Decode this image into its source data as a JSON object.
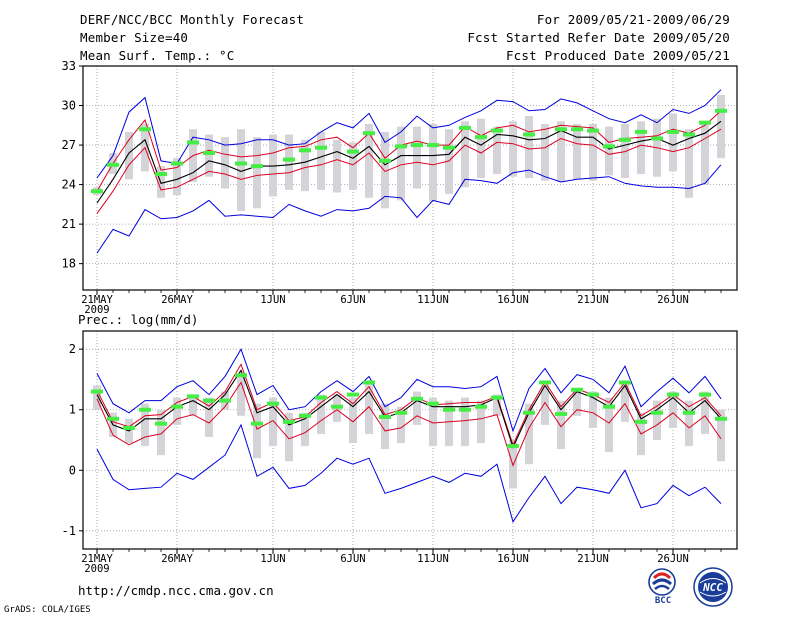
{
  "header": {
    "title": "DERF/NCC/BCC Monthly Forecast",
    "member": "Member Size=40",
    "variable": "Mean Surf. Temp.: °C",
    "period": "For 2009/05/21-2009/06/29",
    "started": "Fcst Started Refer Date 2009/05/20",
    "produced": "Fcst Produced Date 2009/05/21"
  },
  "footer": {
    "url": "http://cmdp.ncc.cma.gov.cn",
    "credit": "GrADS: COLA/IGES",
    "logo_left": "BCC",
    "logo_right": "NCC"
  },
  "colors": {
    "spread_line": "#0000dd",
    "band_line": "#dd0022",
    "mean_line": "#000000",
    "box": "#d3d3d8",
    "median": "#44ee44",
    "grid": "#9a9a9a"
  },
  "chart_data": [
    {
      "type": "line",
      "title": "Mean Surf. Temp.: °C",
      "x_labels": [
        "21MAY",
        "26MAY",
        "1JUN",
        "6JUN",
        "11JUN",
        "16JUN",
        "21JUN",
        "26JUN"
      ],
      "x_label_days": [
        0,
        5,
        11,
        16,
        21,
        26,
        31,
        36
      ],
      "year_label": "2009",
      "days": 40,
      "ylim": [
        16,
        33
      ],
      "yticks": [
        18,
        21,
        24,
        27,
        30,
        33
      ],
      "grid": true,
      "series": [
        {
          "name": "max",
          "color": "#0000dd",
          "values": [
            24.5,
            26.2,
            29.5,
            30.6,
            25.8,
            25.6,
            27.6,
            27.4,
            27.0,
            27.1,
            27.4,
            27.4,
            27.0,
            27.1,
            28.0,
            28.7,
            28.3,
            29.4,
            27.2,
            28.0,
            29.2,
            28.3,
            28.5,
            29.1,
            29.6,
            30.4,
            30.3,
            29.6,
            29.7,
            30.5,
            30.2,
            29.6,
            29.0,
            28.7,
            29.3,
            28.7,
            29.7,
            29.4,
            30.0,
            31.2
          ]
        },
        {
          "name": "upper",
          "color": "#dd0022",
          "values": [
            23.5,
            25.6,
            27.4,
            28.9,
            25.1,
            25.3,
            26.2,
            26.6,
            26.3,
            26.1,
            26.2,
            26.4,
            26.8,
            26.9,
            27.4,
            27.6,
            26.8,
            27.9,
            26.0,
            27.0,
            27.3,
            27.0,
            27.0,
            28.4,
            27.7,
            28.3,
            28.5,
            28.0,
            28.2,
            28.5,
            28.4,
            28.3,
            27.2,
            27.5,
            27.6,
            27.7,
            28.2,
            27.9,
            28.5,
            29.6
          ]
        },
        {
          "name": "mean",
          "color": "#000000",
          "values": [
            22.6,
            24.4,
            26.4,
            27.4,
            24.1,
            24.4,
            24.9,
            25.8,
            25.5,
            25.0,
            25.4,
            25.4,
            25.5,
            25.7,
            26.1,
            26.5,
            26.0,
            26.9,
            25.5,
            26.2,
            26.2,
            26.2,
            26.3,
            27.6,
            27.0,
            27.8,
            27.7,
            27.4,
            27.5,
            28.1,
            27.6,
            27.6,
            26.7,
            27.0,
            27.3,
            27.5,
            27.0,
            27.5,
            27.9,
            28.8
          ]
        },
        {
          "name": "lower",
          "color": "#dd0022",
          "values": [
            21.8,
            23.5,
            25.5,
            26.8,
            23.6,
            23.8,
            24.4,
            25.0,
            24.8,
            24.4,
            24.7,
            24.8,
            24.9,
            25.3,
            25.5,
            25.9,
            25.5,
            26.4,
            25.0,
            25.5,
            25.7,
            25.5,
            25.8,
            27.0,
            26.4,
            27.2,
            27.1,
            26.7,
            26.8,
            27.5,
            27.1,
            27.0,
            26.3,
            26.5,
            27.0,
            26.8,
            26.5,
            26.8,
            27.5,
            28.2
          ]
        },
        {
          "name": "min",
          "color": "#0000dd",
          "values": [
            18.8,
            20.6,
            20.1,
            22.1,
            21.4,
            21.5,
            22.0,
            22.8,
            21.6,
            21.7,
            21.6,
            21.5,
            22.5,
            22.0,
            21.6,
            22.1,
            22.0,
            22.2,
            23.1,
            23.0,
            21.5,
            22.8,
            22.5,
            24.4,
            24.3,
            24.1,
            24.9,
            25.1,
            24.6,
            24.2,
            24.4,
            24.5,
            24.6,
            24.1,
            23.9,
            23.8,
            23.8,
            23.7,
            24.1,
            25.5
          ]
        }
      ],
      "boxes": {
        "low": [
          23.2,
          24.8,
          24.4,
          25.0,
          23.0,
          23.2,
          24.2,
          24.6,
          23.7,
          22.0,
          22.2,
          23.1,
          23.6,
          23.5,
          23.6,
          23.4,
          23.6,
          23.0,
          22.2,
          22.8,
          23.7,
          22.7,
          23.3,
          23.8,
          24.5,
          24.8,
          24.6,
          24.5,
          24.3,
          24.2,
          24.4,
          24.3,
          24.7,
          24.5,
          24.8,
          24.6,
          25.0,
          23.0,
          24.0,
          26.0
        ],
        "high": [
          23.8,
          26.4,
          28.0,
          28.6,
          25.4,
          26.0,
          28.2,
          27.8,
          27.6,
          28.2,
          27.6,
          27.8,
          27.8,
          27.4,
          28.0,
          27.4,
          27.2,
          28.6,
          28.0,
          28.4,
          28.4,
          28.6,
          28.2,
          28.8,
          29.0,
          28.4,
          28.8,
          29.2,
          28.6,
          28.8,
          28.6,
          28.6,
          28.4,
          28.6,
          28.8,
          29.0,
          29.4,
          28.2,
          28.8,
          30.8
        ],
        "median": [
          23.5,
          25.5,
          null,
          28.2,
          24.8,
          25.6,
          27.2,
          26.4,
          null,
          25.6,
          25.4,
          null,
          25.9,
          26.6,
          26.8,
          null,
          26.5,
          27.9,
          25.8,
          26.9,
          27.0,
          27.0,
          26.8,
          28.3,
          27.6,
          28.1,
          null,
          27.8,
          null,
          28.2,
          28.2,
          28.1,
          26.9,
          27.4,
          28.0,
          27.5,
          28.0,
          27.8,
          28.7,
          29.6
        ]
      }
    },
    {
      "type": "line",
      "title": "Prec.: log(mm/d)",
      "x_labels": [
        "21MAY",
        "26MAY",
        "1JUN",
        "6JUN",
        "11JUN",
        "16JUN",
        "21JUN",
        "26JUN"
      ],
      "x_label_days": [
        0,
        5,
        11,
        16,
        21,
        26,
        31,
        36
      ],
      "year_label": "2009",
      "days": 40,
      "ylim": [
        -1.3,
        2.3
      ],
      "yticks": [
        -1,
        0,
        1,
        2
      ],
      "grid": true,
      "series": [
        {
          "name": "max",
          "color": "#0000dd",
          "values": [
            1.6,
            1.1,
            0.95,
            1.15,
            1.15,
            1.38,
            1.48,
            1.25,
            1.55,
            2.0,
            1.25,
            1.4,
            1.0,
            1.05,
            1.3,
            1.48,
            1.3,
            1.55,
            1.05,
            1.2,
            1.5,
            1.38,
            1.38,
            1.35,
            1.38,
            1.55,
            0.65,
            1.35,
            1.68,
            1.28,
            1.58,
            1.5,
            1.28,
            1.72,
            1.05,
            1.3,
            1.52,
            1.28,
            1.55,
            1.18
          ]
        },
        {
          "name": "upper",
          "color": "#dd0022",
          "values": [
            1.32,
            0.8,
            0.72,
            0.9,
            0.92,
            1.12,
            1.22,
            1.06,
            1.3,
            1.75,
            1.0,
            1.12,
            0.82,
            0.88,
            1.12,
            1.3,
            1.1,
            1.38,
            0.92,
            1.0,
            1.2,
            1.08,
            1.1,
            1.12,
            1.12,
            1.22,
            0.42,
            1.0,
            1.46,
            1.05,
            1.34,
            1.25,
            1.12,
            1.45,
            0.9,
            1.06,
            1.25,
            1.05,
            1.2,
            0.9
          ]
        },
        {
          "name": "mean",
          "color": "#000000",
          "values": [
            1.25,
            0.75,
            0.65,
            0.85,
            0.85,
            1.05,
            1.15,
            1.0,
            1.25,
            1.65,
            0.95,
            1.05,
            0.75,
            0.85,
            1.05,
            1.25,
            1.05,
            1.3,
            0.88,
            0.95,
            1.15,
            1.05,
            1.05,
            1.05,
            1.08,
            1.2,
            0.38,
            0.95,
            1.4,
            1.0,
            1.3,
            1.2,
            1.05,
            1.4,
            0.85,
            1.0,
            1.2,
            0.95,
            1.15,
            0.85
          ]
        },
        {
          "name": "lower",
          "color": "#dd0022",
          "values": [
            1.18,
            0.58,
            0.42,
            0.55,
            0.6,
            0.85,
            0.92,
            0.78,
            1.05,
            1.45,
            0.68,
            0.82,
            0.52,
            0.62,
            0.82,
            1.0,
            0.8,
            1.05,
            0.65,
            0.7,
            0.9,
            0.78,
            0.8,
            0.82,
            0.85,
            0.92,
            0.08,
            0.7,
            1.12,
            0.72,
            1.0,
            0.95,
            0.78,
            1.1,
            0.6,
            0.75,
            0.95,
            0.7,
            0.9,
            0.52
          ]
        },
        {
          "name": "min",
          "color": "#0000dd",
          "values": [
            0.35,
            -0.15,
            -0.32,
            -0.3,
            -0.28,
            -0.05,
            -0.15,
            0.05,
            0.25,
            0.75,
            -0.1,
            0.05,
            -0.3,
            -0.25,
            -0.05,
            0.2,
            0.1,
            0.2,
            -0.38,
            -0.3,
            -0.2,
            -0.1,
            -0.2,
            -0.05,
            -0.1,
            0.1,
            -0.85,
            -0.45,
            -0.1,
            -0.55,
            -0.28,
            -0.32,
            -0.38,
            0.0,
            -0.62,
            -0.55,
            -0.25,
            -0.42,
            -0.28,
            -0.55
          ]
        }
      ],
      "boxes": {
        "low": [
          1.0,
          0.55,
          0.45,
          0.4,
          0.25,
          0.75,
          0.9,
          0.55,
          1.0,
          0.9,
          0.2,
          0.4,
          0.15,
          0.4,
          0.6,
          0.8,
          0.45,
          0.6,
          0.35,
          0.45,
          0.75,
          0.4,
          0.4,
          0.4,
          0.45,
          0.9,
          -0.3,
          0.1,
          0.75,
          0.35,
          0.9,
          0.7,
          0.3,
          0.8,
          0.25,
          0.5,
          0.7,
          0.4,
          0.6,
          0.15
        ],
        "high": [
          1.4,
          0.95,
          0.85,
          1.1,
          1.0,
          1.2,
          1.25,
          1.2,
          1.3,
          1.6,
          1.1,
          1.2,
          0.95,
          0.95,
          1.25,
          1.25,
          1.2,
          1.45,
          1.1,
          1.05,
          1.3,
          1.2,
          1.15,
          1.2,
          1.15,
          1.25,
          0.5,
          1.1,
          1.4,
          1.15,
          1.35,
          1.3,
          1.2,
          1.45,
          0.95,
          1.15,
          1.3,
          1.15,
          1.3,
          1.0
        ]
      },
      "boxes_median_note": "",
      "median": [
        1.3,
        0.85,
        0.7,
        1.0,
        0.77,
        1.05,
        1.22,
        1.15,
        1.15,
        1.57,
        0.77,
        1.1,
        0.8,
        0.9,
        1.2,
        1.05,
        1.25,
        1.45,
        0.88,
        0.95,
        1.18,
        1.1,
        1.0,
        1.0,
        1.05,
        1.2,
        0.4,
        0.95,
        1.45,
        0.93,
        1.33,
        1.25,
        1.05,
        1.45,
        0.8,
        0.95,
        1.25,
        0.95,
        1.25,
        0.85
      ]
    }
  ]
}
